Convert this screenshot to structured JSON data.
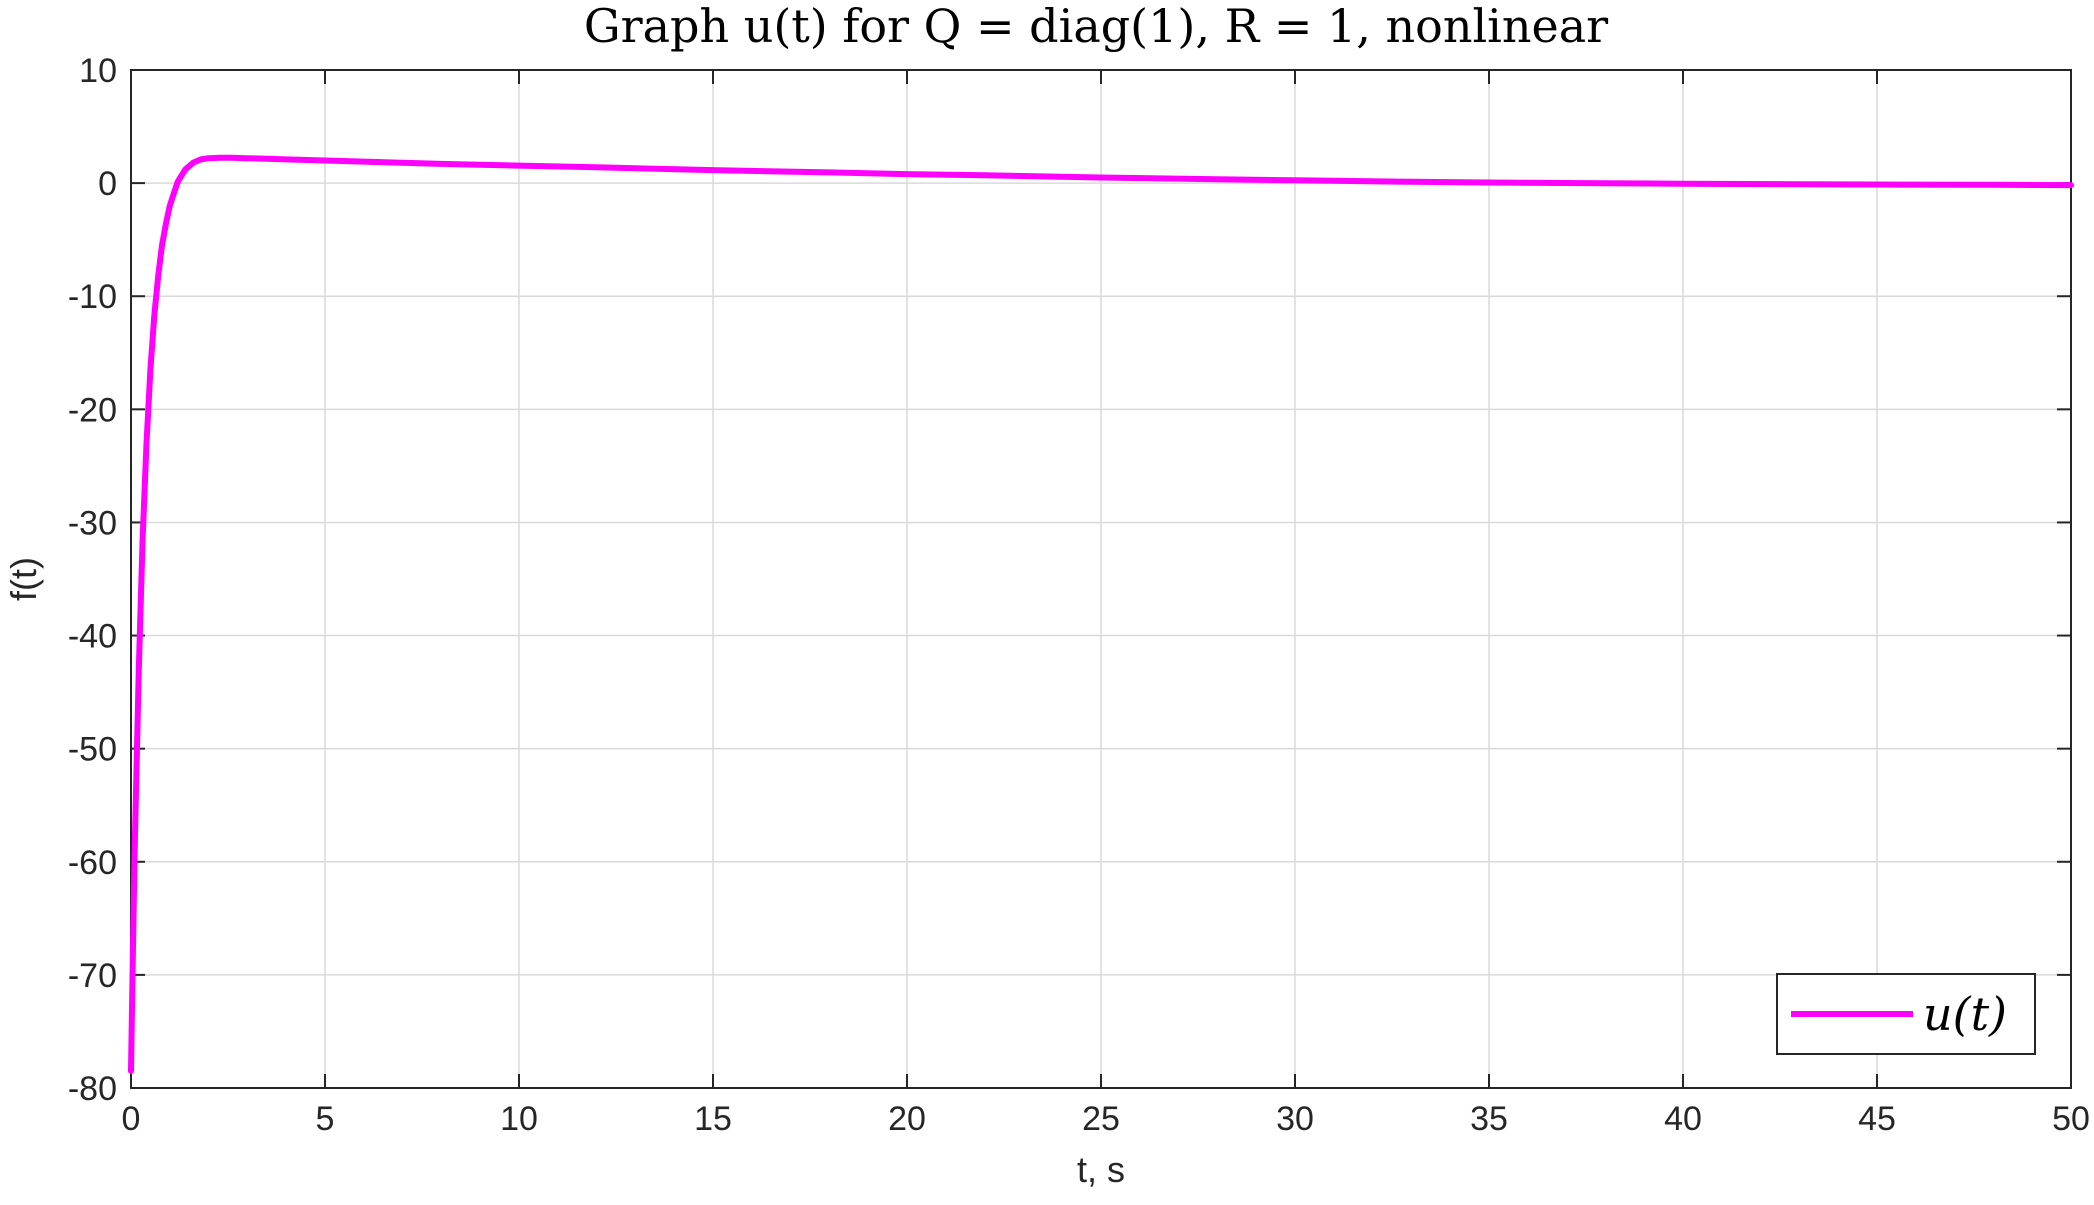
{
  "chart_data": {
    "type": "line",
    "title": "Graph u(t) for Q = diag(1), R = 1, nonlinear",
    "xlabel": "t, s",
    "ylabel": "f(t)",
    "xlim": [
      0,
      50
    ],
    "ylim": [
      -80,
      10
    ],
    "xticks": [
      0,
      5,
      10,
      15,
      20,
      25,
      30,
      35,
      40,
      45,
      50
    ],
    "yticks": [
      10,
      0,
      -10,
      -20,
      -30,
      -40,
      -50,
      -60,
      -70,
      -80
    ],
    "grid": true,
    "legend_position": "bottom-right",
    "series": [
      {
        "name": "u(t)",
        "color": "#ff00ff",
        "x": [
          0,
          0.05,
          0.1,
          0.2,
          0.3,
          0.4,
          0.5,
          0.6,
          0.7,
          0.8,
          0.9,
          1.0,
          1.2,
          1.4,
          1.6,
          1.8,
          2.0,
          2.3,
          2.6,
          3.0,
          3.5,
          4,
          5,
          6,
          8,
          10,
          12,
          15,
          18,
          20,
          22,
          25,
          28,
          30,
          33,
          35,
          38,
          40,
          43,
          45,
          48,
          50
        ],
        "y": [
          -78.5,
          -68,
          -58,
          -43,
          -31.5,
          -23,
          -16.5,
          -11.7,
          -8.2,
          -5.5,
          -3.6,
          -2.0,
          0.1,
          1.2,
          1.8,
          2.1,
          2.2,
          2.25,
          2.25,
          2.2,
          2.15,
          2.1,
          2.0,
          1.9,
          1.7,
          1.55,
          1.4,
          1.15,
          0.95,
          0.8,
          0.7,
          0.5,
          0.35,
          0.25,
          0.12,
          0.05,
          -0.02,
          -0.05,
          -0.1,
          -0.12,
          -0.15,
          -0.18
        ]
      }
    ]
  }
}
